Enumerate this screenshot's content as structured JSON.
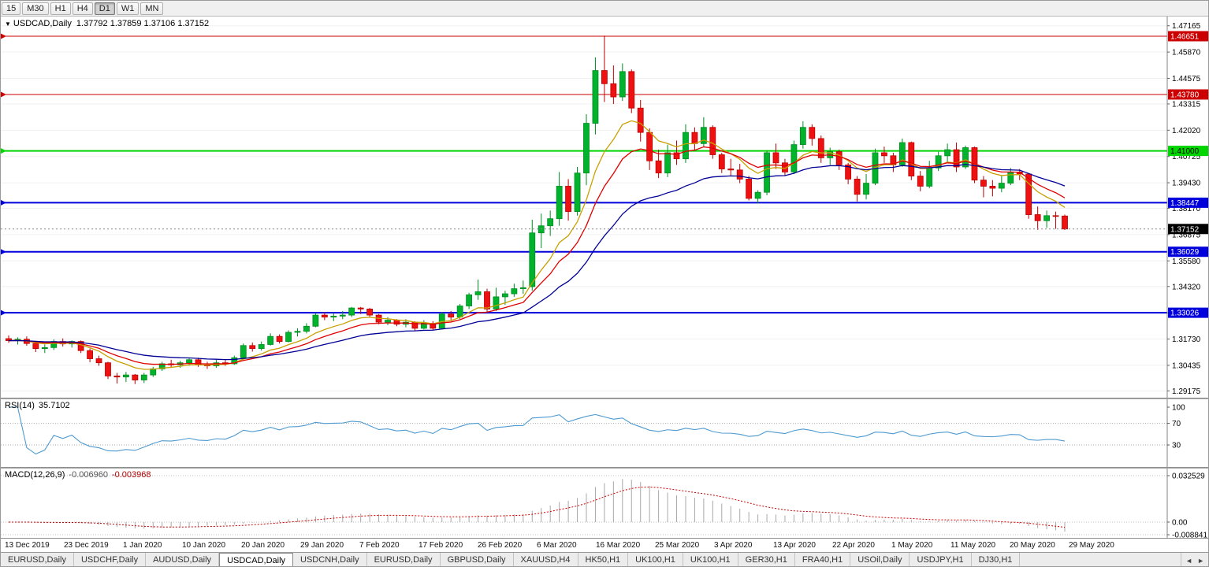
{
  "toolbar": {
    "timeframes": [
      "15",
      "M30",
      "H1",
      "H4",
      "D1",
      "W1",
      "MN"
    ],
    "active_timeframe": "D1"
  },
  "icons": {
    "symbol_dropdown": "▼",
    "tab_scroll_left": "◄",
    "tab_scroll_right": "►"
  },
  "chart": {
    "title_symbol": "USDCAD,Daily",
    "title_ohlc": "1.37792 1.37859 1.37106 1.37152",
    "current_price": "1.37152",
    "price_axis_ticks": [
      "1.47165",
      "1.45870",
      "1.44575",
      "1.43315",
      "1.42020",
      "1.40725",
      "1.39430",
      "1.38170",
      "1.36875",
      "1.35580",
      "1.34320",
      "1.33025",
      "1.31730",
      "1.30435",
      "1.29175"
    ],
    "hlines": [
      {
        "price": "1.46651",
        "color": "#cc0000",
        "text_color": "#ffffff",
        "thickness": 1
      },
      {
        "price": "1.43780",
        "color": "#cc0000",
        "text_color": "#ffffff",
        "thickness": 1
      },
      {
        "price": "1.41000",
        "color": "#00d500",
        "text_color": "#000000",
        "thickness": 2
      },
      {
        "price": "1.38447",
        "color": "#0000dc",
        "text_color": "#ffffff",
        "thickness": 2
      },
      {
        "price": "1.36029",
        "color": "#0000dc",
        "text_color": "#ffffff",
        "thickness": 2
      },
      {
        "price": "1.33026",
        "color": "#0000dc",
        "text_color": "#ffffff",
        "thickness": 2
      }
    ],
    "colors": {
      "up": "#00b22c",
      "up_dark": "#008d22",
      "down": "#ee1111",
      "down_dark": "#bb0000",
      "ma_fast": "#c8a000",
      "ma_mid": "#e00000",
      "ma_slow": "#000096",
      "rsi": "#4e9ad0",
      "macd_hist": "#a8a8a8",
      "macd_signal": "#cc0000",
      "grid": "#f0f0f0"
    }
  },
  "rsi": {
    "label": "RSI(14)",
    "value": "35.7102",
    "ticks": [
      100,
      70,
      30
    ],
    "levels": [
      70,
      30
    ]
  },
  "macd": {
    "label": "MACD(12,26,9)",
    "main_value": "-0.006960",
    "signal_value": "-0.003968",
    "ticks": [
      "0.032529",
      "0.00",
      "-0.008841"
    ]
  },
  "date_axis": [
    "13 Dec 2019",
    "23 Dec 2019",
    "1 Jan 2020",
    "10 Jan 2020",
    "20 Jan 2020",
    "29 Jan 2020",
    "7 Feb 2020",
    "17 Feb 2020",
    "26 Feb 2020",
    "6 Mar 2020",
    "16 Mar 2020",
    "25 Mar 2020",
    "3 Apr 2020",
    "13 Apr 2020",
    "22 Apr 2020",
    "1 May 2020",
    "11 May 2020",
    "20 May 2020",
    "29 May 2020"
  ],
  "tabs": {
    "items": [
      "EURUSD,Daily",
      "USDCHF,Daily",
      "AUDUSD,Daily",
      "USDCAD,Daily",
      "USDCNH,Daily",
      "EURUSD,Daily",
      "GBPUSD,Daily",
      "XAUUSD,H4",
      "HK50,H1",
      "UK100,H1",
      "UK100,H1",
      "GER30,H1",
      "FRA40,H1",
      "USOil,Daily",
      "USDJPY,H1",
      "DJ30,H1"
    ],
    "active_index": 3
  },
  "chart_data": {
    "type": "candlestick",
    "symbol": "USDCAD",
    "timeframe": "Daily",
    "title": "USDCAD,Daily 1.37792 1.37859 1.37106 1.37152",
    "x_labels": [
      "13 Dec 2019",
      "23 Dec 2019",
      "1 Jan 2020",
      "10 Jan 2020",
      "20 Jan 2020",
      "29 Jan 2020",
      "7 Feb 2020",
      "17 Feb 2020",
      "26 Feb 2020",
      "6 Mar 2020",
      "16 Mar 2020",
      "25 Mar 2020",
      "3 Apr 2020",
      "13 Apr 2020",
      "22 Apr 2020",
      "1 May 2020",
      "11 May 2020",
      "20 May 2020",
      "29 May 2020"
    ],
    "y_range": [
      1.2884,
      1.4762
    ],
    "current_ohlc": {
      "open": 1.37792,
      "high": 1.37859,
      "low": 1.37106,
      "close": 1.37152
    },
    "horizontal_levels": [
      1.46651,
      1.4378,
      1.41,
      1.38447,
      1.36029,
      1.33026
    ],
    "indicators": [
      {
        "name": "RSI",
        "params": "14",
        "value": 35.7102,
        "axis_ticks": [
          100,
          70,
          30
        ]
      },
      {
        "name": "MACD",
        "params": "12,26,9",
        "values": [
          -0.00696,
          -0.003968
        ],
        "axis_ticks": [
          0.032529,
          0.0,
          -0.008841
        ]
      }
    ],
    "candles": [
      [
        1.3175,
        1.3191,
        1.3154,
        1.3165
      ],
      [
        1.3165,
        1.3181,
        1.3146,
        1.3172
      ],
      [
        1.3172,
        1.3186,
        1.314,
        1.3151
      ],
      [
        1.3151,
        1.3161,
        1.3109,
        1.3126
      ],
      [
        1.3126,
        1.3146,
        1.3104,
        1.3131
      ],
      [
        1.3131,
        1.3171,
        1.3119,
        1.3161
      ],
      [
        1.3161,
        1.3176,
        1.3136,
        1.3149
      ],
      [
        1.3149,
        1.3166,
        1.3131,
        1.3161
      ],
      [
        1.3161,
        1.3166,
        1.3104,
        1.3116
      ],
      [
        1.3116,
        1.3126,
        1.3059,
        1.3076
      ],
      [
        1.3076,
        1.3091,
        1.3041,
        1.3056
      ],
      [
        1.3056,
        1.3061,
        1.2976,
        1.2991
      ],
      [
        1.2991,
        1.3006,
        1.2954,
        1.2986
      ],
      [
        1.2986,
        1.3011,
        1.2961,
        1.2996
      ],
      [
        1.2996,
        1.3001,
        1.2951,
        1.2971
      ],
      [
        1.2971,
        1.3006,
        1.2956,
        1.2996
      ],
      [
        1.2996,
        1.3036,
        1.2986,
        1.3026
      ],
      [
        1.3026,
        1.3061,
        1.3016,
        1.3051
      ],
      [
        1.3051,
        1.3071,
        1.3031,
        1.3046
      ],
      [
        1.3046,
        1.3066,
        1.3031,
        1.3056
      ],
      [
        1.3056,
        1.3081,
        1.3041,
        1.3071
      ],
      [
        1.3071,
        1.3081,
        1.3036,
        1.3046
      ],
      [
        1.3046,
        1.3061,
        1.3026,
        1.3041
      ],
      [
        1.3041,
        1.3071,
        1.3031,
        1.3056
      ],
      [
        1.3056,
        1.3071,
        1.3041,
        1.3051
      ],
      [
        1.3051,
        1.3091,
        1.3046,
        1.3081
      ],
      [
        1.3081,
        1.3151,
        1.3071,
        1.3141
      ],
      [
        1.3141,
        1.3156,
        1.3111,
        1.3126
      ],
      [
        1.3126,
        1.3161,
        1.3116,
        1.3146
      ],
      [
        1.3146,
        1.3201,
        1.3141,
        1.3186
      ],
      [
        1.3186,
        1.3196,
        1.3151,
        1.3161
      ],
      [
        1.3161,
        1.3216,
        1.3156,
        1.3206
      ],
      [
        1.3206,
        1.3226,
        1.3186,
        1.3211
      ],
      [
        1.3211,
        1.3251,
        1.3201,
        1.3236
      ],
      [
        1.3236,
        1.3301,
        1.3231,
        1.3291
      ],
      [
        1.3291,
        1.3306,
        1.3266,
        1.3281
      ],
      [
        1.3281,
        1.3301,
        1.3261,
        1.3286
      ],
      [
        1.3286,
        1.3311,
        1.3271,
        1.3291
      ],
      [
        1.3291,
        1.3331,
        1.3281,
        1.3326
      ],
      [
        1.3326,
        1.3331,
        1.3296,
        1.3321
      ],
      [
        1.3321,
        1.3326,
        1.3281,
        1.3291
      ],
      [
        1.3291,
        1.3296,
        1.3246,
        1.3256
      ],
      [
        1.3256,
        1.3281,
        1.3241,
        1.3266
      ],
      [
        1.3266,
        1.3271,
        1.3236,
        1.3246
      ],
      [
        1.3246,
        1.3271,
        1.3231,
        1.3256
      ],
      [
        1.3256,
        1.3261,
        1.3211,
        1.3226
      ],
      [
        1.3226,
        1.3266,
        1.3221,
        1.3251
      ],
      [
        1.3251,
        1.3261,
        1.3216,
        1.3226
      ],
      [
        1.3226,
        1.3306,
        1.3221,
        1.3296
      ],
      [
        1.3296,
        1.3311,
        1.3266,
        1.3281
      ],
      [
        1.3281,
        1.3346,
        1.3271,
        1.3336
      ],
      [
        1.3336,
        1.3401,
        1.3321,
        1.3391
      ],
      [
        1.3391,
        1.3466,
        1.3366,
        1.3406
      ],
      [
        1.3406,
        1.3421,
        1.3306,
        1.3321
      ],
      [
        1.3321,
        1.3426,
        1.3311,
        1.3381
      ],
      [
        1.3381,
        1.3411,
        1.3341,
        1.3396
      ],
      [
        1.3396,
        1.3446,
        1.3381,
        1.3421
      ],
      [
        1.3421,
        1.3461,
        1.3396,
        1.3426
      ],
      [
        1.3431,
        1.3761,
        1.3411,
        1.3696
      ],
      [
        1.3696,
        1.3791,
        1.3621,
        1.3731
      ],
      [
        1.3731,
        1.3806,
        1.3681,
        1.3766
      ],
      [
        1.3766,
        1.3996,
        1.3731,
        1.3926
      ],
      [
        1.3926,
        1.3961,
        1.3756,
        1.3801
      ],
      [
        1.3801,
        1.4021,
        1.3781,
        1.3991
      ],
      [
        1.3991,
        1.4281,
        1.3931,
        1.4236
      ],
      [
        1.4236,
        1.4561,
        1.4181,
        1.4496
      ],
      [
        1.4496,
        1.4668,
        1.4341,
        1.4431
      ],
      [
        1.4431,
        1.4521,
        1.4331,
        1.4366
      ],
      [
        1.4366,
        1.4531,
        1.4346,
        1.4491
      ],
      [
        1.4491,
        1.4501,
        1.4286,
        1.4311
      ],
      [
        1.4311,
        1.4351,
        1.4146,
        1.4191
      ],
      [
        1.4191,
        1.4211,
        1.4006,
        1.4051
      ],
      [
        1.4051,
        1.4106,
        1.3966,
        1.3991
      ],
      [
        1.3991,
        1.4131,
        1.3971,
        1.4091
      ],
      [
        1.4091,
        1.4151,
        1.4031,
        1.4061
      ],
      [
        1.4061,
        1.4231,
        1.4041,
        1.4191
      ],
      [
        1.4191,
        1.4216,
        1.4106,
        1.4136
      ],
      [
        1.4136,
        1.4266,
        1.4121,
        1.4216
      ],
      [
        1.4216,
        1.4226,
        1.4061,
        1.4081
      ],
      [
        1.4081,
        1.4091,
        1.3991,
        1.4011
      ],
      [
        1.4011,
        1.4061,
        1.3976,
        1.4006
      ],
      [
        1.4006,
        1.4036,
        1.3941,
        1.3961
      ],
      [
        1.3961,
        1.3976,
        1.3856,
        1.3866
      ],
      [
        1.3866,
        1.3906,
        1.3841,
        1.3896
      ],
      [
        1.3896,
        1.4101,
        1.3881,
        1.4091
      ],
      [
        1.4091,
        1.4136,
        1.4011,
        1.4041
      ],
      [
        1.4041,
        1.4061,
        1.3976,
        1.3996
      ],
      [
        1.3996,
        1.4151,
        1.3986,
        1.4131
      ],
      [
        1.4131,
        1.4246,
        1.4111,
        1.4216
      ],
      [
        1.4216,
        1.4231,
        1.4126,
        1.4161
      ],
      [
        1.4161,
        1.4176,
        1.4041,
        1.4066
      ],
      [
        1.4066,
        1.4116,
        1.4031,
        1.4096
      ],
      [
        1.4096,
        1.4106,
        1.4006,
        1.4031
      ],
      [
        1.4031,
        1.4041,
        1.3936,
        1.3961
      ],
      [
        1.3961,
        1.3976,
        1.3851,
        1.3886
      ],
      [
        1.3886,
        1.3986,
        1.3861,
        1.3941
      ],
      [
        1.3941,
        1.4111,
        1.3931,
        1.4091
      ],
      [
        1.4091,
        1.4121,
        1.4041,
        1.4076
      ],
      [
        1.4076,
        1.4091,
        1.3996,
        1.4031
      ],
      [
        1.4031,
        1.4161,
        1.4021,
        1.4141
      ],
      [
        1.4141,
        1.4146,
        1.3956,
        1.3976
      ],
      [
        1.3976,
        1.4001,
        1.3901,
        1.3926
      ],
      [
        1.3926,
        1.4051,
        1.3916,
        1.4016
      ],
      [
        1.4016,
        1.4096,
        1.4001,
        1.4076
      ],
      [
        1.4076,
        1.4136,
        1.4046,
        1.4106
      ],
      [
        1.4106,
        1.4141,
        1.3996,
        1.4021
      ],
      [
        1.4021,
        1.4126,
        1.4011,
        1.4116
      ],
      [
        1.4116,
        1.4121,
        1.3941,
        1.3956
      ],
      [
        1.3956,
        1.3976,
        1.3871,
        1.3926
      ],
      [
        1.3926,
        1.3956,
        1.3876,
        1.3916
      ],
      [
        1.3916,
        1.3976,
        1.3896,
        1.3941
      ],
      [
        1.3941,
        1.4016,
        1.3931,
        1.3996
      ],
      [
        1.3996,
        1.4011,
        1.3956,
        1.3986
      ],
      [
        1.3986,
        1.3991,
        1.3766,
        1.3786
      ],
      [
        1.3786,
        1.3826,
        1.3711,
        1.3756
      ],
      [
        1.3756,
        1.3806,
        1.3721,
        1.3781
      ],
      [
        1.3781,
        1.3801,
        1.3716,
        1.3779
      ],
      [
        1.37792,
        1.37859,
        1.37106,
        1.37152
      ]
    ]
  }
}
